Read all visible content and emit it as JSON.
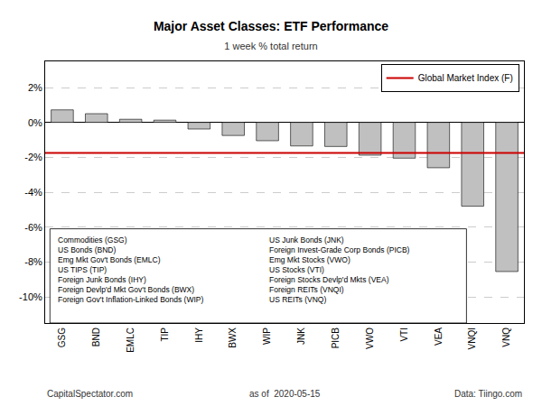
{
  "chart_data": {
    "type": "bar",
    "title": "Major Asset Classes: ETF Performance",
    "subtitle": "1 week % total return",
    "categories": [
      "GSG",
      "BND",
      "EMLC",
      "TIP",
      "IHY",
      "BWX",
      "WIP",
      "JNK",
      "PICB",
      "VWO",
      "VTI",
      "VEA",
      "VNQI",
      "VNQ"
    ],
    "values": [
      0.72,
      0.5,
      0.18,
      0.13,
      -0.38,
      -0.75,
      -1.05,
      -1.35,
      -1.38,
      -1.88,
      -2.05,
      -2.6,
      -4.8,
      -8.55
    ],
    "color": "#c0c0c0",
    "ylim": [
      -11.5,
      3.5
    ],
    "yticks": [
      {
        "value": 2,
        "label": "2%"
      },
      {
        "value": 0,
        "label": "0%"
      },
      {
        "value": -2,
        "label": "-2%"
      },
      {
        "value": -4,
        "label": "-4%"
      },
      {
        "value": -6,
        "label": "-6%"
      },
      {
        "value": -8,
        "label": "-8%"
      },
      {
        "value": -10,
        "label": "-10%"
      }
    ],
    "grid": true,
    "legend": "upper right",
    "reference_line": {
      "name": "Global Market Index (F)",
      "value": -1.75,
      "color": "#cc0000"
    },
    "annotations": [
      {
        "lines": [
          "Commodities (GSG)",
          "US Bonds (BND)",
          "Emg Mkt Gov't Bonds (EMLC)",
          "US TIPS (TIP)",
          "Foreign Junk Bonds (IHY)",
          "Foreign Devlp'd Mkt Gov't Bonds (BWX)",
          "Foreign Gov't Inflation-Linked Bonds (WIP)"
        ]
      },
      {
        "lines": [
          "US Junk Bonds (JNK)",
          "Foreign Invest-Grade Corp Bonds (PICB)",
          "Emg Mkt Stocks (VWO)",
          "US Stocks (VTI)",
          "Foreign Stocks Devlp'd Mkts (VEA)",
          "Foreign REITs (VNQI)",
          "US REITs (VNQ)"
        ]
      }
    ],
    "footer": [
      "CapitalSpectator.com",
      "as of  2020-05-15",
      "Data: Tiingo.com"
    ]
  }
}
